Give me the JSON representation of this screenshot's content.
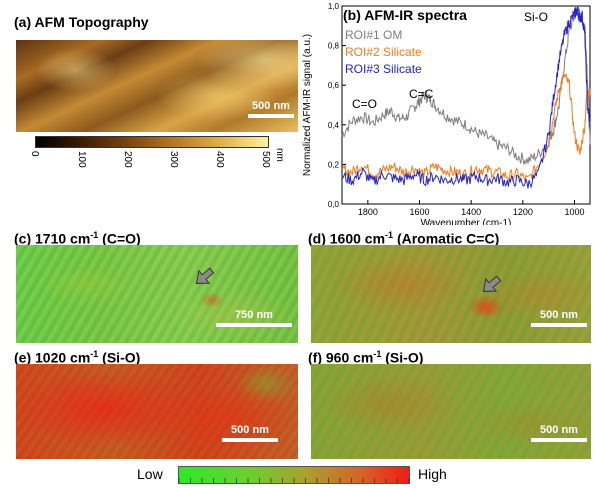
{
  "panels": {
    "a": {
      "label": "(a) AFM Topography",
      "scale_text": "500 nm",
      "colorbar": {
        "ticks": [
          "0",
          "100",
          "200",
          "300",
          "400",
          "500"
        ],
        "unit": "nm"
      }
    },
    "b": {
      "label": "(b) AFM-IR spectra",
      "sio_annotation": "Si-O",
      "co_annotation": "C=O",
      "cc_annotation": "C=C"
    },
    "c": {
      "label": "(c) 1710 cm",
      "sup": "-1",
      "suffix": " (C=O)",
      "scale_text": "750 nm"
    },
    "d": {
      "label": "(d) 1600 cm",
      "sup": "-1",
      "suffix": " (Aromatic C=C)",
      "scale_text": "500 nm"
    },
    "e": {
      "label": "(e) 1020 cm",
      "sup": "-1",
      "suffix": " (Si-O)",
      "scale_text": "500 nm"
    },
    "f": {
      "label": "(f) 960 cm",
      "sup": "-1",
      "suffix": " (Si-O)",
      "scale_text": "500 nm"
    }
  },
  "bottom_colorbar": {
    "low": "Low",
    "high": "High"
  },
  "colors": {
    "om": "#7f7f7f",
    "silicate2": "#f07d1e",
    "silicate3": "#2323c8"
  },
  "chart_data": {
    "type": "line",
    "xlabel": "Wavenumber (cm-1)",
    "ylabel": "Normalized AFM-IR signal (a.u.)",
    "xlim": [
      1900,
      940
    ],
    "ylim": [
      0,
      1.0
    ],
    "x_ticks": [
      "1800",
      "1600",
      "1400",
      "1200",
      "1000"
    ],
    "y_ticks": [
      "0,0",
      "0,2",
      "0,4",
      "0,6",
      "0,8",
      "1,0"
    ],
    "legend_position": "top-left",
    "series": [
      {
        "name": "ROI#1 OM",
        "color": "#7f7f7f",
        "x": [
          1900,
          1860,
          1820,
          1780,
          1740,
          1710,
          1680,
          1650,
          1620,
          1600,
          1580,
          1560,
          1540,
          1500,
          1460,
          1420,
          1380,
          1340,
          1300,
          1260,
          1220,
          1180,
          1140,
          1100,
          1080,
          1060,
          1040,
          1020,
          1000,
          990,
          980,
          970,
          960,
          950,
          940
        ],
        "y": [
          0.35,
          0.42,
          0.44,
          0.41,
          0.45,
          0.47,
          0.43,
          0.44,
          0.49,
          0.52,
          0.55,
          0.53,
          0.5,
          0.45,
          0.42,
          0.4,
          0.36,
          0.34,
          0.3,
          0.28,
          0.24,
          0.22,
          0.25,
          0.32,
          0.38,
          0.5,
          0.7,
          0.88,
          0.95,
          0.98,
          0.96,
          0.93,
          0.9,
          0.65,
          0.3
        ]
      },
      {
        "name": "ROI#2 Silicate",
        "color": "#f07d1e",
        "x": [
          1900,
          1860,
          1820,
          1780,
          1740,
          1700,
          1660,
          1620,
          1580,
          1540,
          1500,
          1460,
          1420,
          1380,
          1340,
          1300,
          1260,
          1220,
          1180,
          1140,
          1100,
          1080,
          1060,
          1040,
          1020,
          1000,
          980,
          960,
          950,
          940
        ],
        "y": [
          0.18,
          0.16,
          0.2,
          0.15,
          0.17,
          0.19,
          0.16,
          0.18,
          0.15,
          0.19,
          0.17,
          0.16,
          0.15,
          0.18,
          0.17,
          0.16,
          0.14,
          0.15,
          0.12,
          0.2,
          0.3,
          0.45,
          0.58,
          0.65,
          0.6,
          0.35,
          0.25,
          0.4,
          0.6,
          0.55
        ]
      },
      {
        "name": "ROI#3 Silicate",
        "color": "#2323c8",
        "x": [
          1900,
          1860,
          1820,
          1780,
          1740,
          1700,
          1660,
          1620,
          1580,
          1540,
          1500,
          1460,
          1420,
          1380,
          1340,
          1300,
          1260,
          1220,
          1180,
          1140,
          1100,
          1080,
          1060,
          1040,
          1020,
          1000,
          990,
          980,
          970,
          960,
          950,
          940
        ],
        "y": [
          0.14,
          0.12,
          0.16,
          0.11,
          0.15,
          0.13,
          0.12,
          0.15,
          0.12,
          0.14,
          0.12,
          0.13,
          0.12,
          0.14,
          0.12,
          0.13,
          0.11,
          0.12,
          0.1,
          0.15,
          0.35,
          0.55,
          0.72,
          0.85,
          0.92,
          0.96,
          0.98,
          0.94,
          0.95,
          0.85,
          0.5,
          0.4
        ]
      }
    ]
  }
}
